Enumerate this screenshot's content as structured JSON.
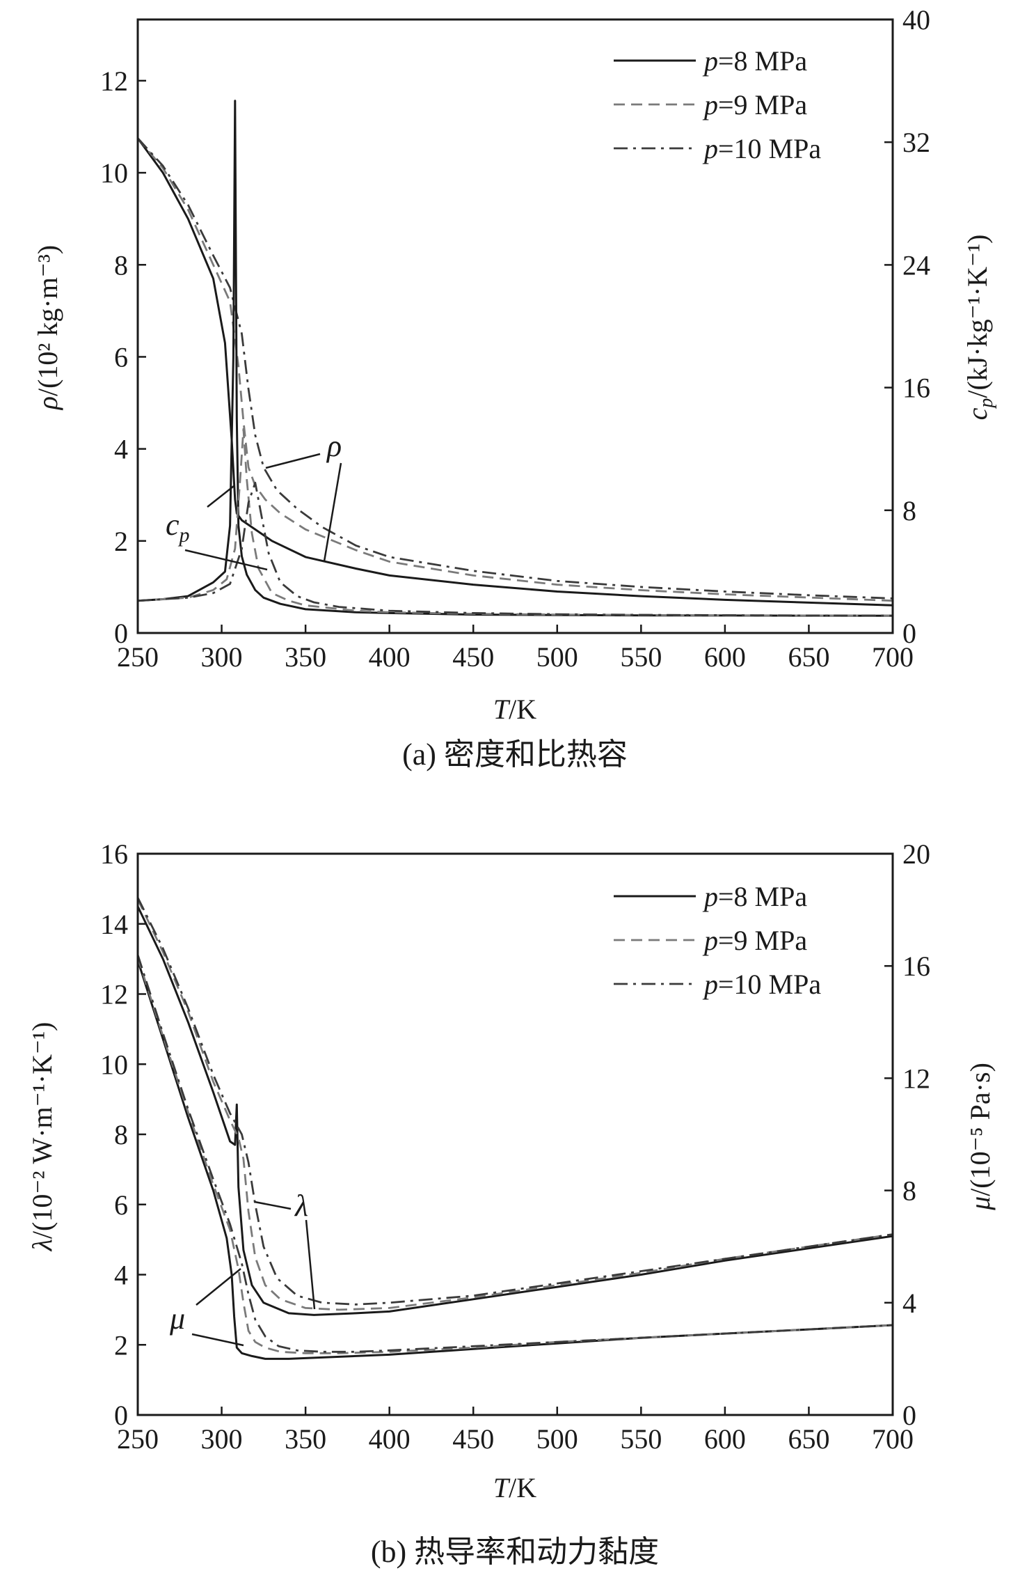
{
  "colors": {
    "p8": "#1a1a1a",
    "p9": "#7a7a7a",
    "p10": "#3a3a3a"
  },
  "chart_data": [
    {
      "type": "line",
      "caption": "(a) 密度和比热容",
      "xlabel_italic": "T",
      "xlabel_unit": "/K",
      "xlim": [
        250,
        700
      ],
      "x_ticks": [
        "250",
        "300",
        "350",
        "400",
        "450",
        "500",
        "550",
        "600",
        "650",
        "700"
      ],
      "left_axis": {
        "label_symbol": "ρ",
        "label_unit": "/(10² kg·m⁻³)",
        "ylim": [
          0,
          13.33
        ],
        "ticks": [
          "0",
          "2",
          "4",
          "6",
          "8",
          "10",
          "12"
        ]
      },
      "right_axis": {
        "label_symbol": "c",
        "label_sub": "p",
        "label_unit": "/(kJ·kg⁻¹·K⁻¹)",
        "ylim": [
          0,
          40
        ],
        "ticks": [
          "0",
          "8",
          "16",
          "24",
          "32",
          "40"
        ]
      },
      "legend": [
        {
          "p": "p",
          "rest": "=8 MPa",
          "style": "solid",
          "key": "p8"
        },
        {
          "p": "p",
          "rest": "=9 MPa",
          "style": "dashed",
          "key": "p9"
        },
        {
          "p": "p",
          "rest": "=10 MPa",
          "style": "dashdot",
          "key": "p10"
        }
      ],
      "annotations": {
        "left_curve": "ρ",
        "right_curve": "c",
        "right_curve_sub": "p"
      },
      "series": [
        {
          "name": "ρ, p=8 MPa",
          "axis": "left",
          "style": "solid",
          "key": "p8",
          "x": [
            250,
            265,
            280,
            295,
            302,
            306,
            308,
            309,
            312,
            318,
            330,
            350,
            380,
            400,
            450,
            500,
            550,
            600,
            650,
            700
          ],
          "y": [
            10.75,
            10.0,
            9.0,
            7.7,
            6.3,
            4.2,
            2.9,
            2.6,
            2.45,
            2.3,
            2.0,
            1.65,
            1.4,
            1.25,
            1.05,
            0.9,
            0.8,
            0.72,
            0.66,
            0.6
          ]
        },
        {
          "name": "ρ, p=9 MPa",
          "axis": "left",
          "style": "dashed",
          "key": "p9",
          "x": [
            250,
            265,
            280,
            295,
            305,
            310,
            313,
            316,
            320,
            326,
            335,
            350,
            380,
            400,
            450,
            500,
            550,
            600,
            650,
            700
          ],
          "y": [
            10.75,
            10.1,
            9.2,
            8.0,
            7.2,
            5.8,
            4.6,
            3.6,
            3.2,
            2.9,
            2.6,
            2.25,
            1.8,
            1.55,
            1.25,
            1.05,
            0.93,
            0.84,
            0.77,
            0.7
          ]
        },
        {
          "name": "ρ, p=10 MPa",
          "axis": "left",
          "style": "dashdot",
          "key": "p10",
          "x": [
            250,
            265,
            280,
            295,
            305,
            312,
            316,
            320,
            325,
            333,
            345,
            360,
            380,
            400,
            450,
            500,
            550,
            600,
            650,
            700
          ],
          "y": [
            10.75,
            10.15,
            9.3,
            8.2,
            7.5,
            6.5,
            5.3,
            4.3,
            3.6,
            3.1,
            2.7,
            2.3,
            1.9,
            1.65,
            1.35,
            1.13,
            1.0,
            0.9,
            0.82,
            0.75
          ]
        },
        {
          "name": "cp, p=8 MPa",
          "axis": "right",
          "style": "solid",
          "key": "p8",
          "x": [
            250,
            265,
            280,
            295,
            302,
            305,
            307,
            308,
            309,
            310,
            312,
            315,
            320,
            325,
            335,
            350,
            380,
            400,
            450,
            500,
            550,
            600,
            650,
            700
          ],
          "y": [
            2.1,
            2.2,
            2.4,
            3.3,
            4.0,
            7.0,
            18.0,
            34.7,
            14.0,
            7.0,
            5.0,
            3.8,
            2.8,
            2.3,
            1.9,
            1.55,
            1.35,
            1.3,
            1.2,
            1.17,
            1.15,
            1.14,
            1.13,
            1.12
          ]
        },
        {
          "name": "cp, p=9 MPa",
          "axis": "right",
          "style": "dashed",
          "key": "p9",
          "x": [
            250,
            265,
            280,
            295,
            303,
            308,
            311,
            313,
            315,
            318,
            322,
            330,
            340,
            350,
            380,
            400,
            450,
            500,
            550,
            600,
            650,
            700
          ],
          "y": [
            2.1,
            2.2,
            2.3,
            2.8,
            3.5,
            5.5,
            10.0,
            13.3,
            10.0,
            6.5,
            4.2,
            2.6,
            2.1,
            1.8,
            1.45,
            1.35,
            1.25,
            1.2,
            1.17,
            1.15,
            1.14,
            1.13
          ]
        },
        {
          "name": "cp, p=10 MPa",
          "axis": "right",
          "style": "dashdot",
          "key": "p10",
          "x": [
            250,
            265,
            280,
            295,
            305,
            312,
            316,
            320,
            324,
            328,
            335,
            345,
            355,
            370,
            400,
            450,
            500,
            550,
            600,
            650,
            700
          ],
          "y": [
            2.1,
            2.2,
            2.3,
            2.6,
            3.2,
            5.5,
            8.5,
            9.8,
            7.5,
            5.2,
            3.3,
            2.4,
            2.0,
            1.7,
            1.45,
            1.3,
            1.22,
            1.18,
            1.16,
            1.14,
            1.13
          ]
        }
      ]
    },
    {
      "type": "line",
      "caption": "(b) 热导率和动力黏度",
      "xlabel_italic": "T",
      "xlabel_unit": "/K",
      "xlim": [
        250,
        700
      ],
      "x_ticks": [
        "250",
        "300",
        "350",
        "400",
        "450",
        "500",
        "550",
        "600",
        "650",
        "700"
      ],
      "left_axis": {
        "label_symbol": "λ",
        "label_unit": "/(10⁻² W·m⁻¹·K⁻¹)",
        "ylim": [
          0,
          16
        ],
        "ticks": [
          "0",
          "2",
          "4",
          "6",
          "8",
          "10",
          "12",
          "14",
          "16"
        ]
      },
      "right_axis": {
        "label_symbol": "μ",
        "label_unit": "/(10⁻⁵ Pa·s)",
        "ylim": [
          0,
          20
        ],
        "ticks": [
          "0",
          "4",
          "8",
          "12",
          "16",
          "20"
        ]
      },
      "legend": [
        {
          "p": "p",
          "rest": "=8 MPa",
          "style": "solid",
          "key": "p8"
        },
        {
          "p": "p",
          "rest": "=9 MPa",
          "style": "dashed",
          "key": "p9"
        },
        {
          "p": "p",
          "rest": "=10 MPa",
          "style": "dashdot",
          "key": "p10"
        }
      ],
      "annotations": {
        "left_curve": "λ",
        "right_curve": "μ"
      },
      "series": [
        {
          "name": "λ, p=8 MPa",
          "axis": "left",
          "style": "solid",
          "key": "p8",
          "x": [
            250,
            265,
            280,
            295,
            305,
            308,
            309,
            310,
            313,
            318,
            325,
            340,
            355,
            380,
            400,
            450,
            500,
            550,
            600,
            650,
            700
          ],
          "y": [
            14.5,
            13.0,
            11.2,
            9.2,
            7.8,
            7.7,
            8.85,
            6.5,
            4.7,
            3.7,
            3.2,
            2.9,
            2.85,
            2.9,
            2.95,
            3.3,
            3.65,
            4.0,
            4.4,
            4.75,
            5.1
          ]
        },
        {
          "name": "λ, p=9 MPa",
          "axis": "left",
          "style": "dashed",
          "key": "p9",
          "x": [
            250,
            265,
            280,
            295,
            305,
            310,
            313,
            316,
            320,
            326,
            335,
            350,
            370,
            400,
            450,
            500,
            550,
            600,
            650,
            700
          ],
          "y": [
            14.7,
            13.2,
            11.5,
            9.5,
            8.4,
            7.9,
            7.3,
            5.8,
            4.5,
            3.7,
            3.3,
            3.05,
            3.0,
            3.05,
            3.35,
            3.7,
            4.05,
            4.45,
            4.8,
            5.15
          ]
        },
        {
          "name": "λ, p=10 MPa",
          "axis": "left",
          "style": "dashdot",
          "key": "p10",
          "x": [
            250,
            265,
            280,
            295,
            305,
            312,
            316,
            320,
            325,
            333,
            345,
            360,
            380,
            400,
            450,
            500,
            550,
            600,
            650,
            700
          ],
          "y": [
            14.75,
            13.3,
            11.6,
            9.7,
            8.6,
            8.0,
            7.2,
            6.0,
            4.8,
            3.9,
            3.4,
            3.2,
            3.15,
            3.2,
            3.4,
            3.75,
            4.1,
            4.45,
            4.8,
            5.15
          ]
        },
        {
          "name": "μ, p=8 MPa",
          "axis": "right",
          "style": "solid",
          "key": "p8",
          "x": [
            250,
            265,
            280,
            295,
            303,
            306,
            307.5,
            309,
            312,
            318,
            326,
            340,
            360,
            400,
            450,
            500,
            550,
            600,
            650,
            700
          ],
          "y": [
            16.2,
            13.4,
            10.6,
            8.0,
            6.3,
            5.0,
            3.5,
            2.4,
            2.2,
            2.1,
            2.0,
            2.0,
            2.05,
            2.15,
            2.35,
            2.55,
            2.75,
            2.9,
            3.05,
            3.2
          ]
        },
        {
          "name": "μ, p=9 MPa",
          "axis": "right",
          "style": "dashed",
          "key": "p9",
          "x": [
            250,
            265,
            280,
            295,
            305,
            310,
            313,
            316,
            320,
            326,
            335,
            350,
            370,
            400,
            450,
            500,
            550,
            600,
            650,
            700
          ],
          "y": [
            16.3,
            13.5,
            10.8,
            8.2,
            6.6,
            5.2,
            4.0,
            3.0,
            2.6,
            2.4,
            2.25,
            2.2,
            2.2,
            2.25,
            2.4,
            2.6,
            2.75,
            2.9,
            3.05,
            3.2
          ]
        },
        {
          "name": "μ, p=10 MPa",
          "axis": "right",
          "style": "dashdot",
          "key": "p10",
          "x": [
            250,
            265,
            280,
            295,
            305,
            312,
            316,
            320,
            326,
            334,
            345,
            360,
            380,
            400,
            450,
            500,
            550,
            600,
            650,
            700
          ],
          "y": [
            16.4,
            13.6,
            10.9,
            8.4,
            6.8,
            5.4,
            4.3,
            3.4,
            2.8,
            2.45,
            2.3,
            2.25,
            2.25,
            2.3,
            2.45,
            2.6,
            2.75,
            2.9,
            3.05,
            3.2
          ]
        }
      ]
    }
  ]
}
